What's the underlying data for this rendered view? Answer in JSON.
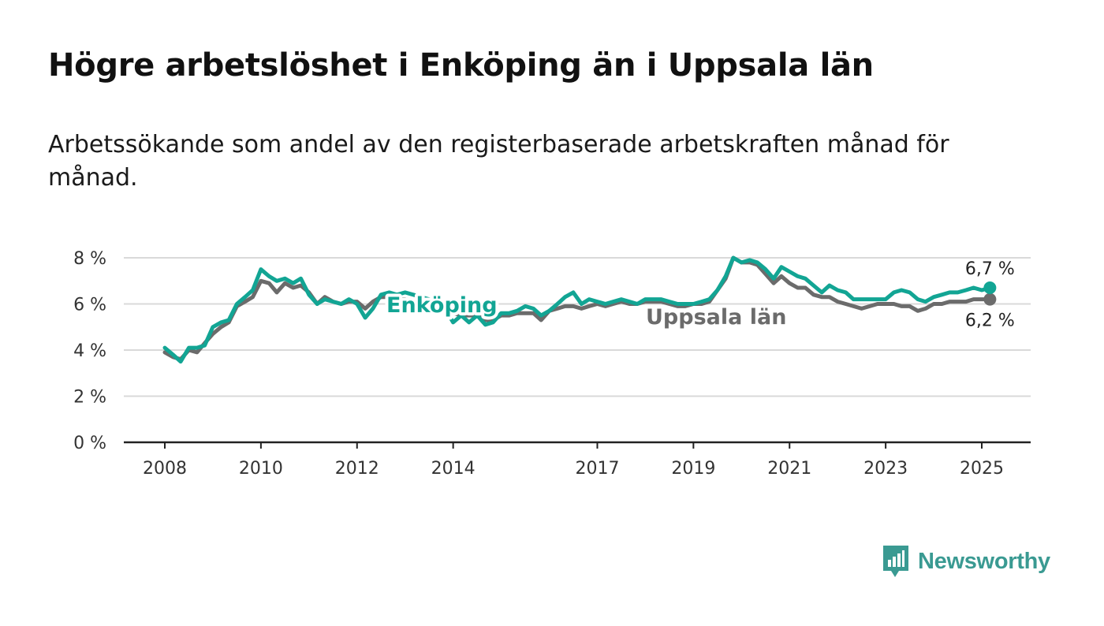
{
  "title": "Högre arbetslöshet i Enköping än i Uppsala län",
  "subtitle": "Arbetssökande som andel av den registerbaserade arbetskraften månad för månad.",
  "brand": {
    "name": "Newsworthy",
    "icon": "newsworthy-logo-icon",
    "color": "#3a9a92"
  },
  "colors": {
    "enkoping": "#12a594",
    "uppsala": "#6b6b6b",
    "grid": "#d9d9d9",
    "axis": "#222222"
  },
  "chart_data": {
    "type": "line",
    "title": "Högre arbetslöshet i Enköping än i Uppsala län",
    "xlabel": "",
    "ylabel": "",
    "ylim": [
      0,
      8
    ],
    "xlim": [
      2008.0,
      2025.9
    ],
    "y_ticks": [
      0,
      2,
      4,
      6,
      8
    ],
    "y_tick_labels": [
      "0 %",
      "2 %",
      "4 %",
      "6 %",
      "8 %"
    ],
    "x_ticks": [
      2008,
      2010,
      2012,
      2014,
      2017,
      2019,
      2021,
      2023,
      2025
    ],
    "x_tick_labels": [
      "2008",
      "2010",
      "2012",
      "2014",
      "2017",
      "2019",
      "2021",
      "2023",
      "2025"
    ],
    "grid": true,
    "series": [
      {
        "name": "Enköping",
        "label_value": "6,7 %",
        "x": [
          2008.0,
          2008.17,
          2008.33,
          2008.5,
          2008.67,
          2008.83,
          2009.0,
          2009.17,
          2009.33,
          2009.5,
          2009.67,
          2009.83,
          2010.0,
          2010.17,
          2010.33,
          2010.5,
          2010.67,
          2010.83,
          2011.0,
          2011.17,
          2011.33,
          2011.5,
          2011.67,
          2011.83,
          2012.0,
          2012.17,
          2012.33,
          2012.5,
          2012.67,
          2012.83,
          2013.0,
          2013.17,
          2013.33,
          2013.5,
          2013.67,
          2013.83,
          2014.0,
          2014.17,
          2014.33,
          2014.5,
          2014.67,
          2014.83,
          2015.0,
          2015.17,
          2015.33,
          2015.5,
          2015.67,
          2015.83,
          2016.0,
          2016.17,
          2016.33,
          2016.5,
          2016.67,
          2016.83,
          2017.0,
          2017.17,
          2017.33,
          2017.5,
          2017.67,
          2017.83,
          2018.0,
          2018.17,
          2018.33,
          2018.5,
          2018.67,
          2018.83,
          2019.0,
          2019.17,
          2019.33,
          2019.5,
          2019.67,
          2019.83,
          2020.0,
          2020.17,
          2020.33,
          2020.5,
          2020.67,
          2020.83,
          2021.0,
          2021.17,
          2021.33,
          2021.5,
          2021.67,
          2021.83,
          2022.0,
          2022.17,
          2022.33,
          2022.5,
          2022.67,
          2022.83,
          2023.0,
          2023.17,
          2023.33,
          2023.5,
          2023.67,
          2023.83,
          2024.0,
          2024.17,
          2024.33,
          2024.5,
          2024.67,
          2024.83,
          2025.0,
          2025.17
        ],
        "y": [
          4.1,
          3.8,
          3.5,
          4.1,
          4.1,
          4.2,
          5.0,
          5.2,
          5.3,
          6.0,
          6.3,
          6.6,
          7.5,
          7.2,
          7.0,
          7.1,
          6.9,
          7.1,
          6.4,
          6.0,
          6.2,
          6.1,
          6.0,
          6.2,
          6.0,
          5.4,
          5.8,
          6.4,
          6.5,
          6.4,
          6.5,
          6.4,
          6.3,
          6.2,
          6.0,
          5.8,
          5.2,
          5.5,
          5.2,
          5.5,
          5.1,
          5.2,
          5.6,
          5.6,
          5.7,
          5.9,
          5.8,
          5.5,
          5.7,
          6.0,
          6.3,
          6.5,
          6.0,
          6.2,
          6.1,
          6.0,
          6.1,
          6.2,
          6.1,
          6.0,
          6.2,
          6.2,
          6.2,
          6.1,
          6.0,
          6.0,
          6.0,
          6.1,
          6.2,
          6.6,
          7.2,
          8.0,
          7.8,
          7.9,
          7.8,
          7.5,
          7.1,
          7.6,
          7.4,
          7.2,
          7.1,
          6.8,
          6.5,
          6.8,
          6.6,
          6.5,
          6.2,
          6.2,
          6.2,
          6.2,
          6.2,
          6.5,
          6.6,
          6.5,
          6.2,
          6.1,
          6.3,
          6.4,
          6.5,
          6.5,
          6.6,
          6.7,
          6.6,
          6.7
        ]
      },
      {
        "name": "Uppsala län",
        "label_value": "6,2 %",
        "x": [
          2008.0,
          2008.17,
          2008.33,
          2008.5,
          2008.67,
          2008.83,
          2009.0,
          2009.17,
          2009.33,
          2009.5,
          2009.67,
          2009.83,
          2010.0,
          2010.17,
          2010.33,
          2010.5,
          2010.67,
          2010.83,
          2011.0,
          2011.17,
          2011.33,
          2011.5,
          2011.67,
          2011.83,
          2012.0,
          2012.17,
          2012.33,
          2012.5,
          2012.67,
          2012.83,
          2013.0,
          2013.17,
          2013.33,
          2013.5,
          2013.67,
          2013.83,
          2014.0,
          2014.17,
          2014.33,
          2014.5,
          2014.67,
          2014.83,
          2015.0,
          2015.17,
          2015.33,
          2015.5,
          2015.67,
          2015.83,
          2016.0,
          2016.17,
          2016.33,
          2016.5,
          2016.67,
          2016.83,
          2017.0,
          2017.17,
          2017.33,
          2017.5,
          2017.67,
          2017.83,
          2018.0,
          2018.17,
          2018.33,
          2018.5,
          2018.67,
          2018.83,
          2019.0,
          2019.17,
          2019.33,
          2019.5,
          2019.67,
          2019.83,
          2020.0,
          2020.17,
          2020.33,
          2020.5,
          2020.67,
          2020.83,
          2021.0,
          2021.17,
          2021.33,
          2021.5,
          2021.67,
          2021.83,
          2022.0,
          2022.17,
          2022.33,
          2022.5,
          2022.67,
          2022.83,
          2023.0,
          2023.17,
          2023.33,
          2023.5,
          2023.67,
          2023.83,
          2024.0,
          2024.17,
          2024.33,
          2024.5,
          2024.67,
          2024.83,
          2025.0,
          2025.17
        ],
        "y": [
          3.9,
          3.7,
          3.6,
          4.0,
          3.9,
          4.3,
          4.7,
          5.0,
          5.2,
          5.9,
          6.1,
          6.3,
          7.0,
          6.9,
          6.5,
          6.9,
          6.7,
          6.8,
          6.5,
          6.0,
          6.3,
          6.1,
          6.0,
          6.1,
          6.1,
          5.8,
          6.1,
          6.3,
          6.3,
          6.2,
          6.2,
          6.1,
          6.0,
          5.9,
          5.8,
          5.7,
          5.6,
          5.5,
          5.5,
          5.5,
          5.3,
          5.3,
          5.5,
          5.5,
          5.6,
          5.6,
          5.6,
          5.3,
          5.7,
          5.8,
          5.9,
          5.9,
          5.8,
          5.9,
          6.0,
          5.9,
          6.0,
          6.1,
          6.0,
          6.0,
          6.1,
          6.1,
          6.1,
          6.0,
          5.9,
          5.9,
          6.0,
          6.0,
          6.1,
          6.6,
          7.1,
          8.0,
          7.8,
          7.8,
          7.7,
          7.3,
          6.9,
          7.2,
          6.9,
          6.7,
          6.7,
          6.4,
          6.3,
          6.3,
          6.1,
          6.0,
          5.9,
          5.8,
          5.9,
          6.0,
          6.0,
          6.0,
          5.9,
          5.9,
          5.7,
          5.8,
          6.0,
          6.0,
          6.1,
          6.1,
          6.1,
          6.2,
          6.2,
          6.2
        ]
      }
    ]
  }
}
